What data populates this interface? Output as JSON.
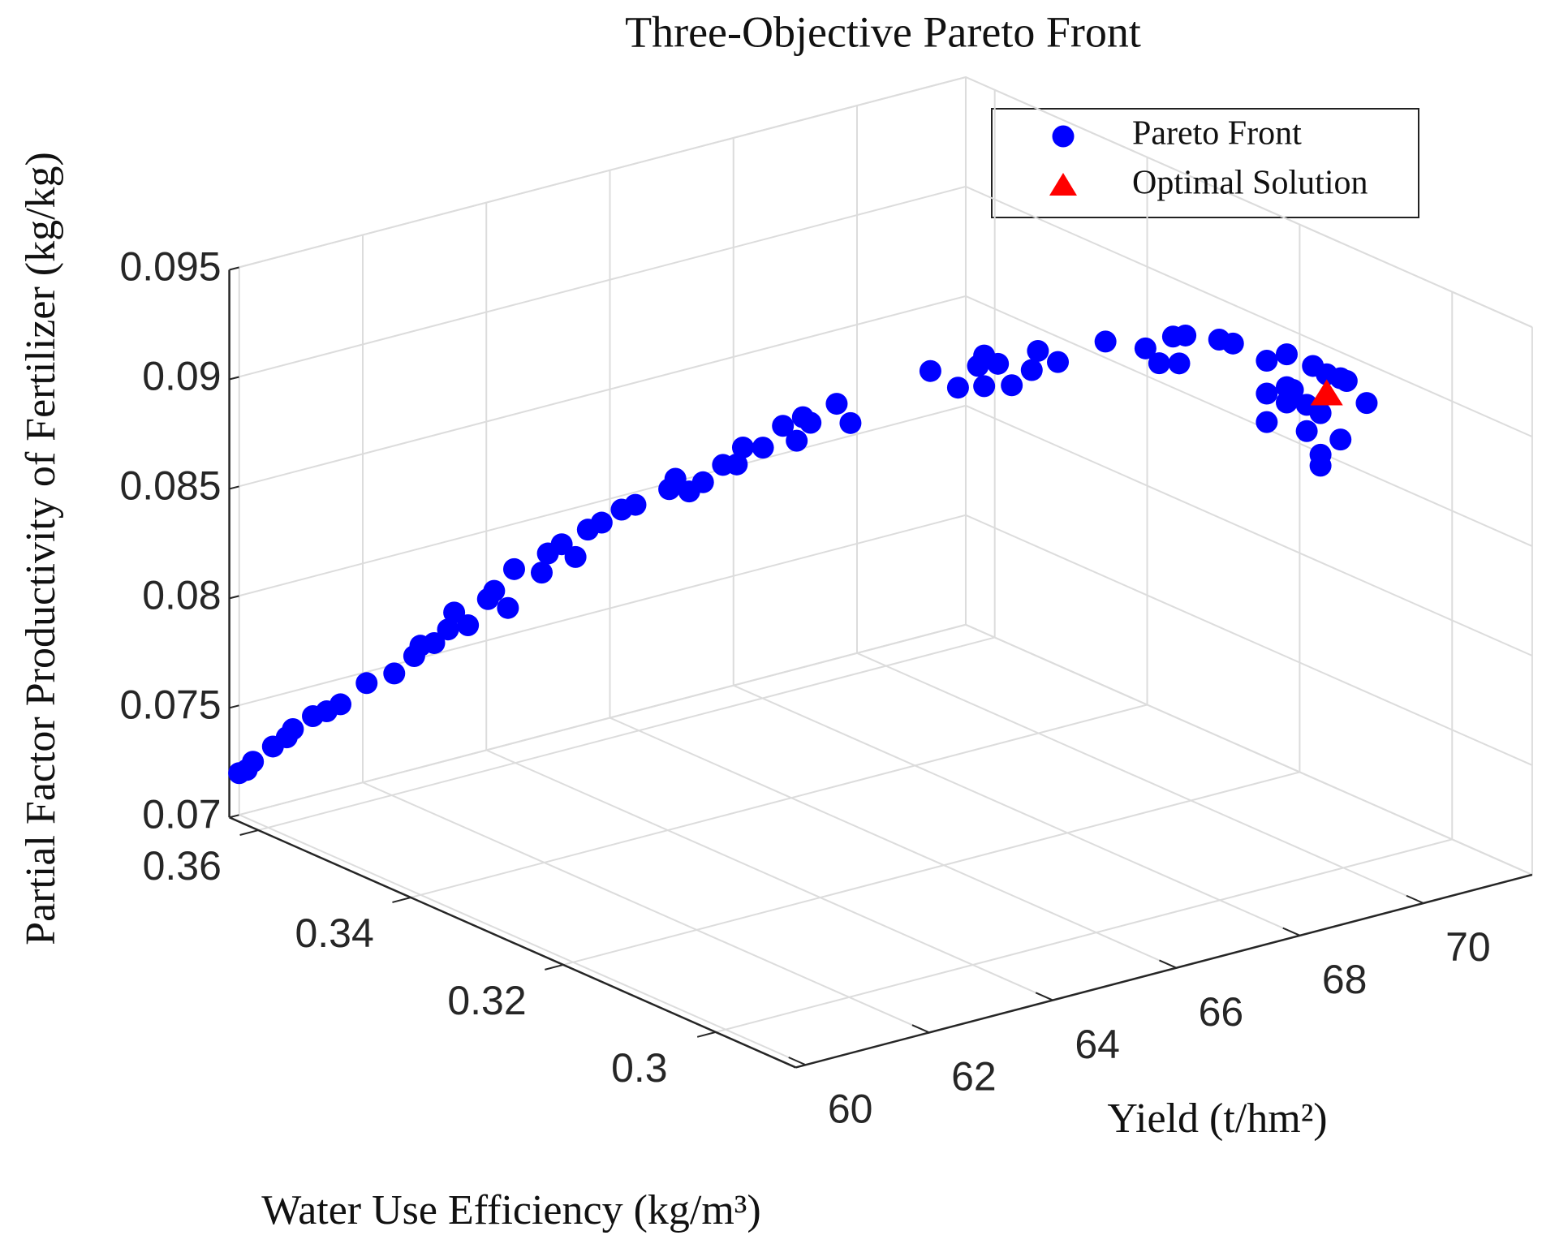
{
  "chart_data": {
    "type": "scatter3d",
    "title": "Three-Objective Pareto Front",
    "xlabel": "Water Use Efficiency (kg/m³)",
    "ylabel": "Yield (t/hm²)",
    "zlabel": "Partial Factor Productivity of Fertilizer (kg/kg)",
    "xlim": [
      0.2895,
      0.3638
    ],
    "ylim": [
      59.84,
      71.76
    ],
    "zlim": [
      0.07,
      0.095
    ],
    "xticks": [
      0.3,
      0.32,
      0.34,
      0.36
    ],
    "yticks": [
      60,
      62,
      64,
      66,
      68,
      70
    ],
    "zticks": [
      0.07,
      0.075,
      0.08,
      0.085,
      0.09,
      0.095
    ],
    "grid": true,
    "legend": "upper right",
    "series": [
      {
        "name": "Pareto Front",
        "color": "#0000ff",
        "marker": "circle",
        "x": [
          0.363,
          0.362,
          0.362,
          0.361,
          0.36,
          0.36,
          0.359,
          0.358,
          0.357,
          0.356,
          0.354,
          0.353,
          0.353,
          0.352,
          0.351,
          0.351,
          0.35,
          0.349,
          0.349,
          0.348,
          0.348,
          0.346,
          0.346,
          0.345,
          0.344,
          0.344,
          0.343,
          0.342,
          0.341,
          0.339,
          0.339,
          0.338,
          0.337,
          0.336,
          0.335,
          0.335,
          0.334,
          0.333,
          0.332,
          0.332,
          0.331,
          0.33,
          0.329,
          0.325,
          0.323,
          0.322,
          0.322,
          0.322,
          0.321,
          0.32,
          0.319,
          0.319,
          0.318,
          0.315,
          0.313,
          0.312,
          0.311,
          0.311,
          0.311,
          0.309,
          0.308,
          0.306,
          0.305,
          0.306,
          0.305,
          0.305,
          0.305,
          0.304,
          0.306,
          0.304,
          0.303,
          0.304,
          0.303,
          0.302,
          0.302,
          0.301,
          0.302,
          0.303,
          0.303
        ],
        "y": [
          59.9,
          59.9,
          60.0,
          60.2,
          60.3,
          60.4,
          60.6,
          60.7,
          60.8,
          61.1,
          61.3,
          61.5,
          61.6,
          61.7,
          61.8,
          61.9,
          62.0,
          62.2,
          62.3,
          62.4,
          62.5,
          62.7,
          62.8,
          62.9,
          63.0,
          63.2,
          63.3,
          63.5,
          63.6,
          63.9,
          64.0,
          64.1,
          64.2,
          64.4,
          64.5,
          64.6,
          64.8,
          65.0,
          65.1,
          65.2,
          65.2,
          65.5,
          65.6,
          66.4,
          66.6,
          66.8,
          66.9,
          66.9,
          67.0,
          67.1,
          67.3,
          67.4,
          67.6,
          68.0,
          68.4,
          68.5,
          68.6,
          68.7,
          68.8,
          69.1,
          69.2,
          69.5,
          69.7,
          69.5,
          69.7,
          69.7,
          69.8,
          69.9,
          69.5,
          69.9,
          70.0,
          70.0,
          70.1,
          70.2,
          70.3,
          70.5,
          70.2,
          70.0,
          70.0
        ],
        "z": [
          0.0721,
          0.0724,
          0.0727,
          0.0734,
          0.0739,
          0.0742,
          0.0748,
          0.0751,
          0.0755,
          0.0764,
          0.077,
          0.0778,
          0.0782,
          0.0784,
          0.0791,
          0.0798,
          0.0793,
          0.0805,
          0.0808,
          0.0801,
          0.0818,
          0.0818,
          0.0826,
          0.0831,
          0.0826,
          0.0837,
          0.0841,
          0.0847,
          0.085,
          0.0858,
          0.0862,
          0.0857,
          0.0862,
          0.087,
          0.0871,
          0.0878,
          0.0878,
          0.0888,
          0.0882,
          0.0892,
          0.0891,
          0.0899,
          0.0891,
          0.0915,
          0.0909,
          0.0919,
          0.0923,
          0.0909,
          0.092,
          0.0911,
          0.0918,
          0.0926,
          0.0921,
          0.0932,
          0.0929,
          0.0923,
          0.0936,
          0.0923,
          0.0935,
          0.0934,
          0.0933,
          0.0926,
          0.0929,
          0.0911,
          0.0914,
          0.0907,
          0.0912,
          0.0906,
          0.0898,
          0.0894,
          0.0903,
          0.0923,
          0.092,
          0.0919,
          0.0917,
          0.0907,
          0.0891,
          0.0884,
          0.0879
        ]
      },
      {
        "name": "Optimal Solution",
        "color": "#ff0000",
        "marker": "triangle",
        "x": [
          0.303
        ],
        "y": [
          70.1
        ],
        "z": [
          0.0911
        ]
      }
    ]
  }
}
